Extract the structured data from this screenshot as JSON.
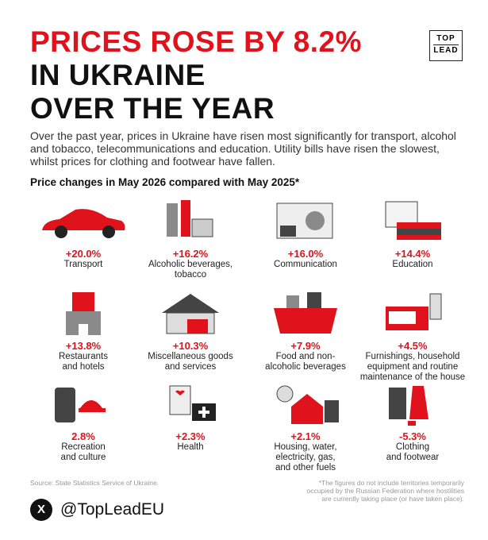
{
  "header": {
    "title_lines": [
      "PRICES ROSE BY 8.2%",
      "IN UKRAINE",
      "OVER THE YEAR"
    ],
    "logo": [
      "TOP",
      "LEAD"
    ]
  },
  "intro": "Over the past year, prices in Ukraine have risen most significantly for transport, alcohol and tobacco, telecommunications and education. Utility bills have risen the slowest, whilst prices for clothing and footwear have fallen.",
  "subtitle": "Price changes in May 2026 compared with May 2025*",
  "items": [
    {
      "value": "+20.0%",
      "label": [
        "Transport"
      ]
    },
    {
      "value": "+16.2%",
      "label": [
        "Alcoholic beverages,",
        "tobacco"
      ]
    },
    {
      "value": "+16.0%",
      "label": [
        "Communication"
      ]
    },
    {
      "value": "+14.4%",
      "label": [
        "Education"
      ]
    },
    {
      "value": "+13.8%",
      "label": [
        "Restaurants",
        "and hotels"
      ]
    },
    {
      "value": "+10.3%",
      "label": [
        "Miscellaneous goods",
        "and services"
      ]
    },
    {
      "value": "+7.9%",
      "label": [
        "Food and non-",
        "alcoholic beverages"
      ]
    },
    {
      "value": "+4.5%",
      "label": [
        "Furnishings, household",
        "equipment and routine",
        "maintenance of the house"
      ]
    },
    {
      "value": "2.8%",
      "label": [
        "Recreation",
        "and culture"
      ]
    },
    {
      "value": "+2.3%",
      "label": [
        "Health"
      ]
    },
    {
      "value": "+2.1%",
      "label": [
        "Housing, water,",
        "electricity, gas,",
        "and other fuels"
      ]
    },
    {
      "value": "-5.3%",
      "label": [
        "Clothing",
        "and footwear"
      ]
    }
  ],
  "footer": {
    "source": "Source: State Statistics Service of Ukraine.",
    "note": [
      "*The figures do not include territories temporarily",
      "occupied by the Russian Federation where hostilities",
      "are currently taking place (or have taken place)."
    ],
    "handle": "@TopLeadEU",
    "social": "X"
  }
}
